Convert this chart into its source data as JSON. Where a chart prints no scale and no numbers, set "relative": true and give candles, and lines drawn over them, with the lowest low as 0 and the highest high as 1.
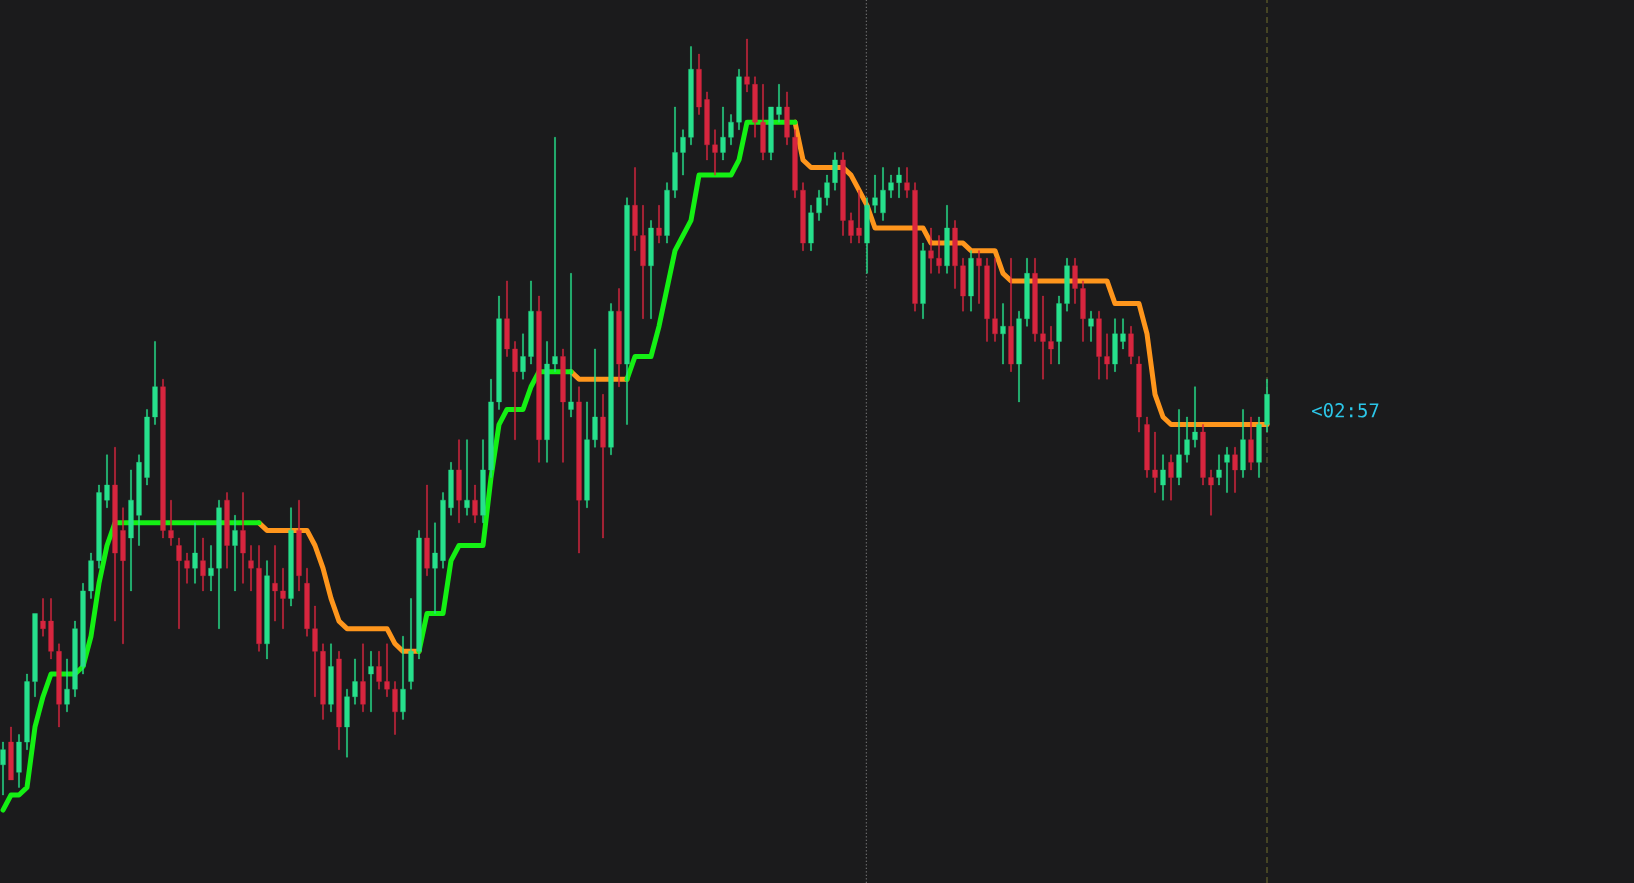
{
  "chart_data": {
    "type": "candlestick",
    "relative": true,
    "tick_labels": false,
    "categories": [
      null,
      null,
      null,
      null,
      null,
      null,
      null,
      null,
      null,
      null,
      null,
      null,
      null,
      null,
      null,
      null,
      null,
      null,
      null,
      null,
      null,
      null,
      null,
      null,
      null,
      null,
      null,
      null,
      null,
      null,
      null,
      null,
      null,
      null,
      null,
      null,
      null,
      null,
      null,
      null,
      null,
      null,
      null,
      null,
      null,
      null,
      null,
      null,
      null,
      null,
      null,
      null,
      null,
      null,
      null,
      null,
      null,
      null,
      null,
      null,
      null,
      null,
      null,
      null,
      null,
      null,
      null,
      null,
      null,
      null,
      null,
      null,
      null,
      null,
      null,
      null,
      null,
      null,
      null,
      null,
      null,
      null,
      null,
      null,
      null,
      null,
      null,
      null,
      null,
      null,
      null,
      null,
      null,
      null,
      null,
      null,
      null,
      null,
      null,
      null,
      null,
      null,
      null,
      null,
      null,
      null,
      null,
      null,
      null,
      null,
      null,
      null,
      null,
      null,
      null,
      null,
      null,
      null,
      null,
      null,
      null,
      null,
      null,
      null,
      null,
      null,
      null,
      null,
      null,
      null,
      null,
      null,
      null,
      null,
      null,
      null,
      null,
      null,
      null,
      null,
      null,
      null,
      null,
      null,
      null,
      null,
      null,
      null,
      null,
      null,
      null,
      null,
      null,
      null,
      null,
      null,
      null,
      null,
      null
    ],
    "ohlc": [
      [
        0.04,
        0.07,
        0.0,
        0.06
      ],
      [
        0.07,
        0.09,
        0.02,
        0.02
      ],
      [
        0.03,
        0.08,
        0.01,
        0.07
      ],
      [
        0.07,
        0.16,
        0.06,
        0.15
      ],
      [
        0.15,
        0.24,
        0.13,
        0.24
      ],
      [
        0.23,
        0.26,
        0.21,
        0.22
      ],
      [
        0.23,
        0.26,
        0.18,
        0.19
      ],
      [
        0.19,
        0.2,
        0.09,
        0.12
      ],
      [
        0.12,
        0.18,
        0.11,
        0.14
      ],
      [
        0.14,
        0.23,
        0.13,
        0.22
      ],
      [
        0.17,
        0.28,
        0.16,
        0.27
      ],
      [
        0.27,
        0.32,
        0.26,
        0.31
      ],
      [
        0.31,
        0.41,
        0.3,
        0.4
      ],
      [
        0.39,
        0.45,
        0.38,
        0.41
      ],
      [
        0.41,
        0.46,
        0.23,
        0.32
      ],
      [
        0.35,
        0.38,
        0.2,
        0.31
      ],
      [
        0.34,
        0.43,
        0.27,
        0.39
      ],
      [
        0.37,
        0.45,
        0.33,
        0.44
      ],
      [
        0.42,
        0.51,
        0.41,
        0.5
      ],
      [
        0.5,
        0.6,
        0.49,
        0.54
      ],
      [
        0.54,
        0.55,
        0.34,
        0.35
      ],
      [
        0.35,
        0.39,
        0.33,
        0.34
      ],
      [
        0.33,
        0.34,
        0.22,
        0.31
      ],
      [
        0.31,
        0.32,
        0.28,
        0.3
      ],
      [
        0.3,
        0.36,
        0.28,
        0.32
      ],
      [
        0.31,
        0.34,
        0.27,
        0.29
      ],
      [
        0.29,
        0.33,
        0.27,
        0.3
      ],
      [
        0.3,
        0.39,
        0.22,
        0.38
      ],
      [
        0.39,
        0.4,
        0.3,
        0.33
      ],
      [
        0.33,
        0.37,
        0.27,
        0.35
      ],
      [
        0.35,
        0.4,
        0.28,
        0.32
      ],
      [
        0.31,
        0.33,
        0.27,
        0.3
      ],
      [
        0.3,
        0.33,
        0.19,
        0.2
      ],
      [
        0.2,
        0.31,
        0.18,
        0.29
      ],
      [
        0.28,
        0.33,
        0.23,
        0.27
      ],
      [
        0.27,
        0.3,
        0.22,
        0.26
      ],
      [
        0.26,
        0.38,
        0.25,
        0.35
      ],
      [
        0.35,
        0.39,
        0.27,
        0.29
      ],
      [
        0.28,
        0.3,
        0.21,
        0.22
      ],
      [
        0.22,
        0.25,
        0.13,
        0.19
      ],
      [
        0.19,
        0.2,
        0.1,
        0.12
      ],
      [
        0.12,
        0.2,
        0.11,
        0.17
      ],
      [
        0.18,
        0.19,
        0.06,
        0.09
      ],
      [
        0.09,
        0.14,
        0.05,
        0.13
      ],
      [
        0.13,
        0.18,
        0.12,
        0.15
      ],
      [
        0.15,
        0.2,
        0.11,
        0.12
      ],
      [
        0.16,
        0.19,
        0.11,
        0.17
      ],
      [
        0.17,
        0.19,
        0.14,
        0.15
      ],
      [
        0.15,
        0.2,
        0.13,
        0.14
      ],
      [
        0.14,
        0.15,
        0.08,
        0.11
      ],
      [
        0.11,
        0.21,
        0.1,
        0.14
      ],
      [
        0.15,
        0.26,
        0.14,
        0.19
      ],
      [
        0.19,
        0.35,
        0.18,
        0.34
      ],
      [
        0.34,
        0.41,
        0.29,
        0.3
      ],
      [
        0.3,
        0.36,
        0.24,
        0.32
      ],
      [
        0.31,
        0.4,
        0.3,
        0.39
      ],
      [
        0.38,
        0.44,
        0.37,
        0.43
      ],
      [
        0.43,
        0.47,
        0.36,
        0.39
      ],
      [
        0.38,
        0.47,
        0.37,
        0.39
      ],
      [
        0.39,
        0.41,
        0.36,
        0.37
      ],
      [
        0.37,
        0.47,
        0.36,
        0.43
      ],
      [
        0.43,
        0.55,
        0.42,
        0.52
      ],
      [
        0.52,
        0.66,
        0.51,
        0.63
      ],
      [
        0.63,
        0.68,
        0.58,
        0.59
      ],
      [
        0.59,
        0.6,
        0.47,
        0.56
      ],
      [
        0.56,
        0.61,
        0.55,
        0.58
      ],
      [
        0.58,
        0.68,
        0.57,
        0.64
      ],
      [
        0.64,
        0.66,
        0.44,
        0.47
      ],
      [
        0.47,
        0.6,
        0.44,
        0.57
      ],
      [
        0.57,
        0.87,
        0.56,
        0.58
      ],
      [
        0.58,
        0.59,
        0.44,
        0.52
      ],
      [
        0.51,
        0.69,
        0.5,
        0.52
      ],
      [
        0.52,
        0.54,
        0.32,
        0.39
      ],
      [
        0.39,
        0.52,
        0.38,
        0.47
      ],
      [
        0.47,
        0.59,
        0.46,
        0.5
      ],
      [
        0.5,
        0.53,
        0.34,
        0.46
      ],
      [
        0.46,
        0.65,
        0.45,
        0.64
      ],
      [
        0.64,
        0.67,
        0.54,
        0.57
      ],
      [
        0.57,
        0.79,
        0.49,
        0.78
      ],
      [
        0.78,
        0.83,
        0.72,
        0.74
      ],
      [
        0.74,
        0.78,
        0.63,
        0.7
      ],
      [
        0.7,
        0.76,
        0.63,
        0.75
      ],
      [
        0.75,
        0.78,
        0.73,
        0.74
      ],
      [
        0.74,
        0.81,
        0.73,
        0.8
      ],
      [
        0.8,
        0.91,
        0.79,
        0.85
      ],
      [
        0.85,
        0.88,
        0.82,
        0.87
      ],
      [
        0.87,
        0.99,
        0.86,
        0.96
      ],
      [
        0.96,
        0.98,
        0.9,
        0.91
      ],
      [
        0.92,
        0.93,
        0.84,
        0.86
      ],
      [
        0.86,
        0.88,
        0.82,
        0.85
      ],
      [
        0.85,
        0.91,
        0.84,
        0.87
      ],
      [
        0.87,
        0.9,
        0.86,
        0.89
      ],
      [
        0.89,
        0.96,
        0.88,
        0.95
      ],
      [
        0.95,
        1.0,
        0.93,
        0.94
      ],
      [
        0.94,
        0.95,
        0.87,
        0.89
      ],
      [
        0.89,
        0.94,
        0.84,
        0.85
      ],
      [
        0.85,
        0.91,
        0.84,
        0.91
      ],
      [
        0.9,
        0.94,
        0.89,
        0.91
      ],
      [
        0.91,
        0.93,
        0.86,
        0.87
      ],
      [
        0.87,
        0.88,
        0.79,
        0.8
      ],
      [
        0.8,
        0.81,
        0.72,
        0.73
      ],
      [
        0.73,
        0.78,
        0.72,
        0.77
      ],
      [
        0.77,
        0.8,
        0.76,
        0.79
      ],
      [
        0.79,
        0.82,
        0.78,
        0.81
      ],
      [
        0.81,
        0.85,
        0.8,
        0.84
      ],
      [
        0.84,
        0.85,
        0.74,
        0.76
      ],
      [
        0.76,
        0.77,
        0.73,
        0.74
      ],
      [
        0.75,
        0.8,
        0.73,
        0.74
      ],
      [
        0.73,
        0.79,
        0.69,
        0.78
      ],
      [
        0.78,
        0.82,
        0.77,
        0.79
      ],
      [
        0.77,
        0.83,
        0.76,
        0.8
      ],
      [
        0.8,
        0.82,
        0.79,
        0.81
      ],
      [
        0.81,
        0.83,
        0.79,
        0.82
      ],
      [
        0.81,
        0.83,
        0.79,
        0.8
      ],
      [
        0.8,
        0.81,
        0.64,
        0.65
      ],
      [
        0.65,
        0.73,
        0.63,
        0.72
      ],
      [
        0.72,
        0.75,
        0.69,
        0.71
      ],
      [
        0.71,
        0.74,
        0.69,
        0.7
      ],
      [
        0.7,
        0.78,
        0.69,
        0.75
      ],
      [
        0.75,
        0.76,
        0.67,
        0.7
      ],
      [
        0.7,
        0.71,
        0.64,
        0.66
      ],
      [
        0.66,
        0.72,
        0.64,
        0.71
      ],
      [
        0.71,
        0.72,
        0.65,
        0.7
      ],
      [
        0.7,
        0.71,
        0.6,
        0.63
      ],
      [
        0.63,
        0.71,
        0.6,
        0.61
      ],
      [
        0.61,
        0.65,
        0.57,
        0.62
      ],
      [
        0.62,
        0.71,
        0.56,
        0.57
      ],
      [
        0.57,
        0.64,
        0.52,
        0.63
      ],
      [
        0.63,
        0.71,
        0.62,
        0.69
      ],
      [
        0.69,
        0.71,
        0.6,
        0.61
      ],
      [
        0.61,
        0.66,
        0.55,
        0.6
      ],
      [
        0.6,
        0.62,
        0.57,
        0.59
      ],
      [
        0.6,
        0.66,
        0.57,
        0.65
      ],
      [
        0.65,
        0.71,
        0.64,
        0.7
      ],
      [
        0.7,
        0.71,
        0.65,
        0.67
      ],
      [
        0.67,
        0.68,
        0.6,
        0.63
      ],
      [
        0.62,
        0.64,
        0.6,
        0.63
      ],
      [
        0.63,
        0.64,
        0.55,
        0.58
      ],
      [
        0.58,
        0.61,
        0.55,
        0.57
      ],
      [
        0.57,
        0.63,
        0.56,
        0.61
      ],
      [
        0.6,
        0.63,
        0.59,
        0.61
      ],
      [
        0.61,
        0.62,
        0.57,
        0.58
      ],
      [
        0.57,
        0.58,
        0.48,
        0.5
      ],
      [
        0.49,
        0.5,
        0.42,
        0.43
      ],
      [
        0.43,
        0.48,
        0.4,
        0.42
      ],
      [
        0.41,
        0.45,
        0.39,
        0.43
      ],
      [
        0.44,
        0.45,
        0.39,
        0.42
      ],
      [
        0.42,
        0.51,
        0.41,
        0.45
      ],
      [
        0.45,
        0.5,
        0.44,
        0.47
      ],
      [
        0.47,
        0.54,
        0.46,
        0.48
      ],
      [
        0.48,
        0.49,
        0.41,
        0.42
      ],
      [
        0.42,
        0.43,
        0.37,
        0.41
      ],
      [
        0.42,
        0.45,
        0.41,
        0.43
      ],
      [
        0.44,
        0.46,
        0.4,
        0.45
      ],
      [
        0.45,
        0.46,
        0.4,
        0.43
      ],
      [
        0.43,
        0.51,
        0.42,
        0.47
      ],
      [
        0.47,
        0.5,
        0.43,
        0.44
      ],
      [
        0.44,
        0.5,
        0.42,
        0.49
      ],
      [
        0.49,
        0.55,
        0.48,
        0.53
      ]
    ],
    "colors": [
      "#27e08c",
      "#d7263f",
      "#27e08c",
      "#27e08c",
      "#27e08c",
      "#d7263f",
      "#d7263f",
      "#d7263f",
      "#27e08c",
      "#27e08c",
      "#27e08c",
      "#27e08c",
      "#27e08c",
      "#27e08c",
      "#d7263f",
      "#d7263f",
      "#27e08c",
      "#27e08c",
      "#27e08c",
      "#27e08c",
      "#d7263f",
      "#d7263f",
      "#d7263f",
      "#d7263f",
      "#27e08c",
      "#d7263f",
      "#27e08c",
      "#27e08c",
      "#d7263f",
      "#27e08c",
      "#d7263f",
      "#d7263f",
      "#d7263f",
      "#27e08c",
      "#d7263f",
      "#d7263f",
      "#27e08c",
      "#d7263f",
      "#d7263f",
      "#d7263f",
      "#d7263f",
      "#27e08c",
      "#d7263f",
      "#27e08c",
      "#27e08c",
      "#d7263f",
      "#27e08c",
      "#d7263f",
      "#d7263f",
      "#d7263f",
      "#27e08c",
      "#27e08c",
      "#27e08c",
      "#d7263f",
      "#27e08c",
      "#27e08c",
      "#27e08c",
      "#d7263f",
      "#27e08c",
      "#d7263f",
      "#27e08c",
      "#27e08c",
      "#27e08c",
      "#d7263f",
      "#d7263f",
      "#27e08c",
      "#27e08c",
      "#d7263f",
      "#27e08c",
      "#27e08c",
      "#d7263f",
      "#27e08c",
      "#d7263f",
      "#27e08c",
      "#27e08c",
      "#d7263f",
      "#27e08c",
      "#d7263f",
      "#27e08c",
      "#d7263f",
      "#d7263f",
      "#27e08c",
      "#d7263f",
      "#27e08c",
      "#27e08c",
      "#27e08c",
      "#27e08c",
      "#d7263f",
      "#d7263f",
      "#d7263f",
      "#27e08c",
      "#27e08c",
      "#27e08c",
      "#d7263f",
      "#d7263f",
      "#d7263f",
      "#27e08c",
      "#27e08c",
      "#d7263f",
      "#d7263f",
      "#d7263f",
      "#27e08c",
      "#27e08c",
      "#27e08c",
      "#27e08c",
      "#d7263f",
      "#d7263f",
      "#d7263f",
      "#27e08c",
      "#27e08c",
      "#27e08c",
      "#27e08c",
      "#27e08c",
      "#d7263f",
      "#d7263f",
      "#27e08c",
      "#d7263f",
      "#d7263f",
      "#27e08c",
      "#d7263f",
      "#d7263f",
      "#27e08c",
      "#d7263f",
      "#d7263f",
      "#d7263f",
      "#27e08c",
      "#d7263f",
      "#27e08c",
      "#27e08c",
      "#d7263f",
      "#d7263f",
      "#d7263f",
      "#27e08c",
      "#27e08c",
      "#d7263f",
      "#d7263f",
      "#27e08c",
      "#d7263f",
      "#d7263f",
      "#27e08c",
      "#27e08c",
      "#d7263f",
      "#d7263f",
      "#d7263f",
      "#d7263f",
      "#27e08c",
      "#d7263f",
      "#27e08c",
      "#27e08c",
      "#27e08c",
      "#d7263f",
      "#d7263f",
      "#27e08c",
      "#27e08c",
      "#d7263f",
      "#27e08c",
      "#d7263f",
      "#27e08c",
      "#27e08c"
    ],
    "series": [
      {
        "type": "line",
        "color": "#ff961c",
        "values": [
          null,
          null,
          null,
          null,
          null,
          null,
          null,
          null,
          null,
          null,
          null,
          null,
          null,
          null,
          null,
          null,
          null,
          null,
          null,
          null,
          null,
          null,
          null,
          null,
          null,
          null,
          null,
          null,
          null,
          null,
          null,
          null,
          0.36,
          0.35,
          0.35,
          0.35,
          0.35,
          0.35,
          0.35,
          0.33,
          0.3,
          0.26,
          0.23,
          0.22,
          0.22,
          0.22,
          0.22,
          0.22,
          0.22,
          0.2,
          0.19,
          0.19,
          0.19,
          null,
          null,
          null,
          null,
          null,
          null,
          null,
          null,
          null,
          null,
          null,
          null,
          null,
          null,
          null,
          null,
          null,
          null,
          0.56,
          0.55,
          0.55,
          0.55,
          0.55,
          0.55,
          0.55,
          0.55,
          null,
          null,
          null,
          null,
          null,
          null,
          null,
          null,
          null,
          null,
          null,
          null,
          null,
          null,
          null,
          null,
          null,
          null,
          null,
          null,
          0.89,
          0.84,
          0.83,
          0.83,
          0.83,
          0.83,
          0.83,
          0.82,
          0.8,
          0.78,
          0.75,
          0.75,
          0.75,
          0.75,
          0.75,
          0.75,
          0.75,
          0.73,
          0.73,
          0.73,
          0.73,
          0.73,
          0.72,
          0.72,
          0.72,
          0.72,
          0.69,
          0.68,
          0.68,
          0.68,
          0.68,
          0.68,
          0.68,
          0.68,
          0.68,
          0.68,
          0.68,
          0.68,
          0.68,
          0.68,
          0.65,
          0.65,
          0.65,
          0.65,
          0.61,
          0.53,
          0.5,
          0.49,
          0.49,
          0.49,
          0.49,
          0.49,
          0.49,
          0.49,
          0.49,
          0.49,
          0.49,
          0.49,
          0.49,
          0.49
        ]
      },
      {
        "type": "line",
        "color": "#14f014",
        "values": [
          -0.02,
          0.0,
          0.0,
          0.01,
          0.09,
          0.13,
          0.16,
          0.16,
          0.16,
          0.16,
          0.17,
          0.21,
          0.28,
          0.33,
          0.36,
          0.36,
          0.36,
          0.36,
          0.36,
          0.36,
          0.36,
          0.36,
          0.36,
          0.36,
          0.36,
          0.36,
          0.36,
          0.36,
          0.36,
          0.36,
          0.36,
          0.36,
          0.36,
          null,
          null,
          null,
          null,
          null,
          null,
          null,
          null,
          null,
          null,
          null,
          null,
          null,
          null,
          null,
          null,
          null,
          null,
          null,
          0.19,
          0.24,
          0.24,
          0.24,
          0.31,
          0.33,
          0.33,
          0.33,
          0.33,
          0.42,
          0.49,
          0.51,
          0.51,
          0.51,
          0.54,
          0.56,
          0.56,
          0.56,
          0.56,
          0.56,
          null,
          null,
          null,
          null,
          null,
          null,
          0.55,
          0.58,
          0.58,
          0.58,
          0.62,
          0.67,
          0.72,
          0.74,
          0.76,
          0.82,
          0.82,
          0.82,
          0.82,
          0.82,
          0.84,
          0.89,
          0.89,
          0.89,
          0.89,
          0.89,
          0.89,
          0.89,
          null,
          null,
          null,
          null,
          null,
          null,
          null,
          null,
          null,
          null,
          null,
          null,
          null,
          null,
          null,
          null,
          null,
          null,
          null,
          null,
          null,
          null,
          null,
          null,
          null,
          null,
          null,
          null,
          null,
          null,
          null,
          null,
          null,
          null,
          null,
          null,
          null,
          null,
          null,
          null,
          null,
          null,
          null,
          null,
          null,
          null,
          null,
          null,
          null,
          null,
          null,
          null,
          null,
          null,
          null,
          null,
          null,
          null,
          null
        ]
      }
    ],
    "annotations": [
      "<02:57"
    ]
  }
}
